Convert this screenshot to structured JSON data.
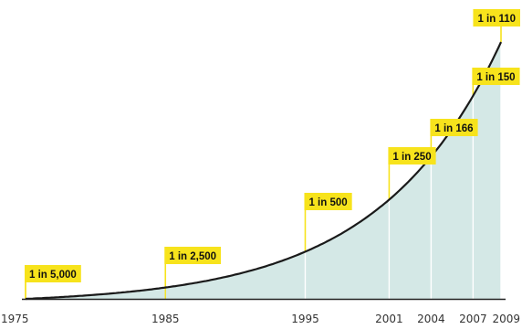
{
  "chart_data": {
    "type": "area",
    "title": "",
    "xlabel": "",
    "ylabel": "",
    "x": [
      1975,
      1985,
      1995,
      2001,
      2004,
      2007,
      2009
    ],
    "tick_labels": [
      "1975",
      "1985",
      "1995",
      "2001",
      "2004",
      "2007",
      "2009"
    ],
    "series": [
      {
        "values": [
          0.0002,
          0.0004,
          0.002,
          0.004,
          0.00602,
          0.00667,
          0.00909
        ],
        "labels": [
          "1 in 5,000",
          "1 in 2,500",
          "1 in 500",
          "1 in 250",
          "1 in 166",
          "1 in 150",
          "1 in 110"
        ]
      }
    ],
    "grid": false,
    "legend": "none",
    "colors": {
      "area_fill": "#d4e8e6",
      "line": "#1a1a1a",
      "callout": "#f7e31c",
      "marker_line": "#ffffff",
      "axis": "#222222"
    }
  }
}
